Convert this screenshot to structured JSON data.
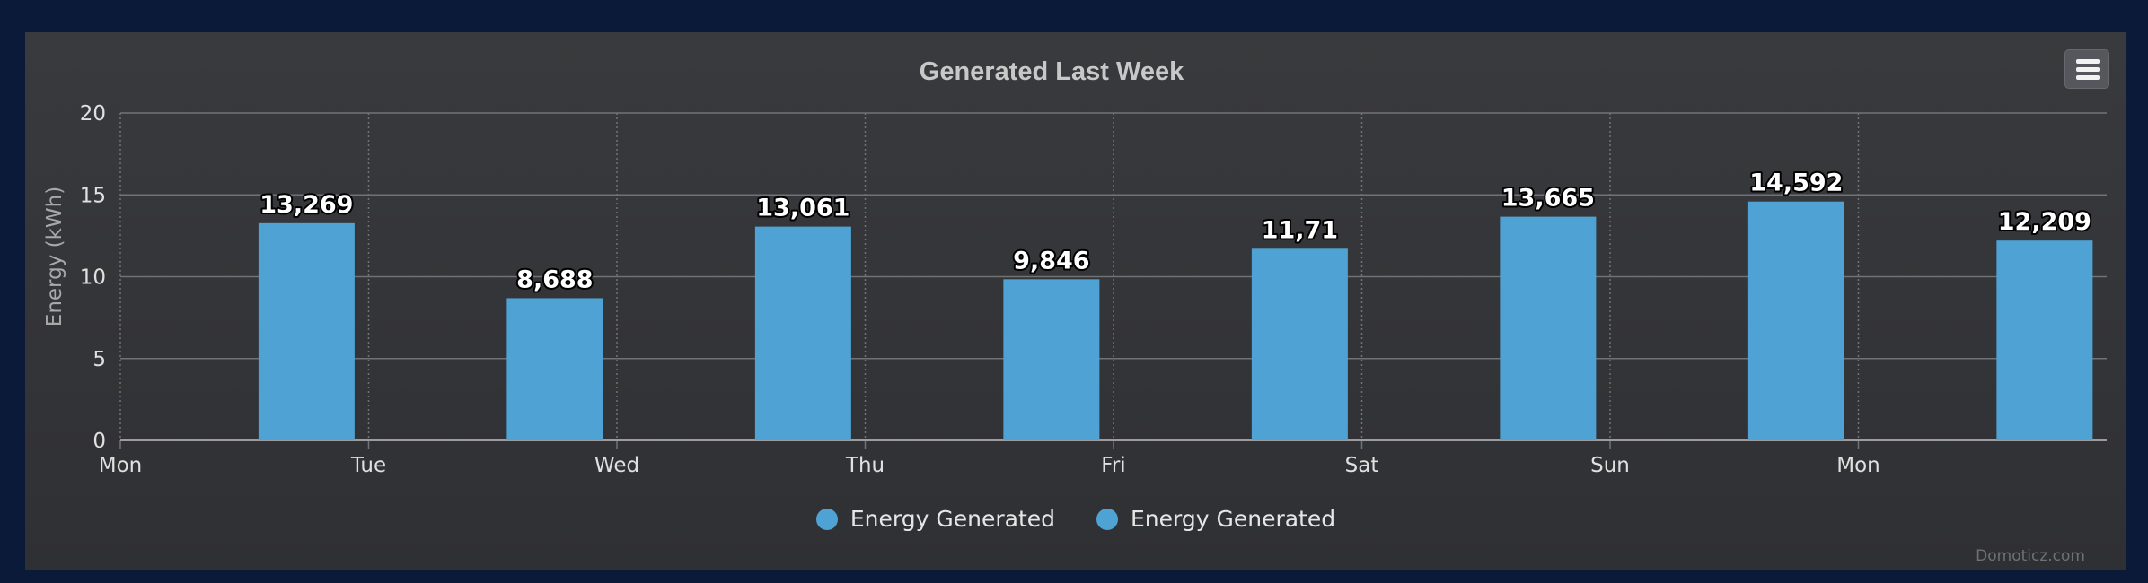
{
  "colors": {
    "bar": "#4fa3d4",
    "grid": "#707278",
    "axis_text": "#e0e0e0",
    "title": "#c8c8c8"
  },
  "menu": {
    "icon": "hamburger-menu-icon"
  },
  "credits": "Domoticz.com",
  "chart_data": {
    "type": "bar",
    "title": "Generated Last Week",
    "ylabel": "Energy (kWh)",
    "xlabel": "",
    "ylim": [
      0,
      20
    ],
    "yticks": [
      0,
      5,
      10,
      15,
      20
    ],
    "grid": true,
    "legend_position": "bottom-center",
    "x_ticks": [
      "Mon",
      "Tue",
      "Wed",
      "Thu",
      "Fri",
      "Sat",
      "Sun",
      "Mon"
    ],
    "series": [
      {
        "name": "Energy Generated",
        "color": "#4fa3d4",
        "values": [
          13.269,
          8.688,
          13.061,
          9.846,
          11.71,
          13.665,
          14.592,
          12.209
        ],
        "labels": [
          "13,269",
          "8,688",
          "13,061",
          "9,846",
          "11,71",
          "13,665",
          "14,592",
          "12,209"
        ]
      }
    ],
    "legend": [
      {
        "label": "Energy Generated",
        "color": "#4fa3d4"
      },
      {
        "label": "Energy Generated",
        "color": "#4fa3d4"
      }
    ]
  }
}
